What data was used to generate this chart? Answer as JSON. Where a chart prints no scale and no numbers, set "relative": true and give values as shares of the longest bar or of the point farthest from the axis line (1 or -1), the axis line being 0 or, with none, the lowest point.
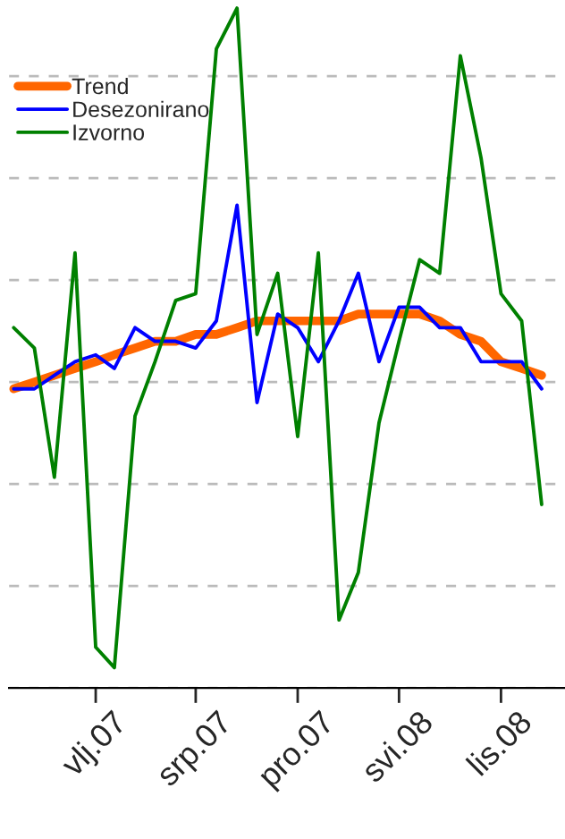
{
  "chart_data": {
    "type": "line",
    "relative": true,
    "x": [
      "2006-10",
      "2006-11",
      "2006-12",
      "2007-01",
      "2007-02",
      "2007-03",
      "2007-04",
      "2007-05",
      "2007-06",
      "2007-07",
      "2007-08",
      "2007-09",
      "2007-10",
      "2007-11",
      "2007-12",
      "2008-01",
      "2008-02",
      "2008-03",
      "2008-04",
      "2008-05",
      "2008-06",
      "2008-07",
      "2008-08",
      "2008-09",
      "2008-10",
      "2008-11",
      "2008-12"
    ],
    "xlim": [
      "2006-09-24",
      "2009-01-05"
    ],
    "xticks": [
      {
        "value": "2007-02",
        "label": "vlj.07"
      },
      {
        "value": "2007-07",
        "label": "srp.07"
      },
      {
        "value": "2007-12",
        "label": "pro.07"
      },
      {
        "value": "2008-05",
        "label": "svi.08"
      },
      {
        "value": "2008-10",
        "label": "lis.08"
      }
    ],
    "grid": "y",
    "legend": "top left",
    "tick_labels": "x",
    "series": [
      {
        "name": "Trend",
        "color": "#ff6600",
        "values": [
          0.44,
          0.45,
          0.46,
          0.47,
          0.48,
          0.49,
          0.5,
          0.51,
          0.51,
          0.52,
          0.52,
          0.53,
          0.54,
          0.54,
          0.54,
          0.54,
          0.54,
          0.55,
          0.55,
          0.55,
          0.55,
          0.54,
          0.52,
          0.51,
          0.48,
          0.47,
          0.46
        ]
      },
      {
        "name": "Desezonirano",
        "color": "#0000ff",
        "values": [
          0.44,
          0.44,
          0.46,
          0.48,
          0.49,
          0.47,
          0.53,
          0.51,
          0.51,
          0.5,
          0.54,
          0.71,
          0.42,
          0.55,
          0.53,
          0.48,
          0.54,
          0.61,
          0.48,
          0.56,
          0.56,
          0.53,
          0.53,
          0.48,
          0.48,
          0.48,
          0.44
        ]
      },
      {
        "name": "Izvorno",
        "color": "#008000",
        "values": [
          0.53,
          0.5,
          0.31,
          0.64,
          0.06,
          0.03,
          0.4,
          0.48,
          0.57,
          0.58,
          0.94,
          1.0,
          0.52,
          0.61,
          0.37,
          0.64,
          0.1,
          0.17,
          0.39,
          0.51,
          0.63,
          0.61,
          0.93,
          0.78,
          0.58,
          0.54,
          0.27
        ]
      }
    ]
  }
}
